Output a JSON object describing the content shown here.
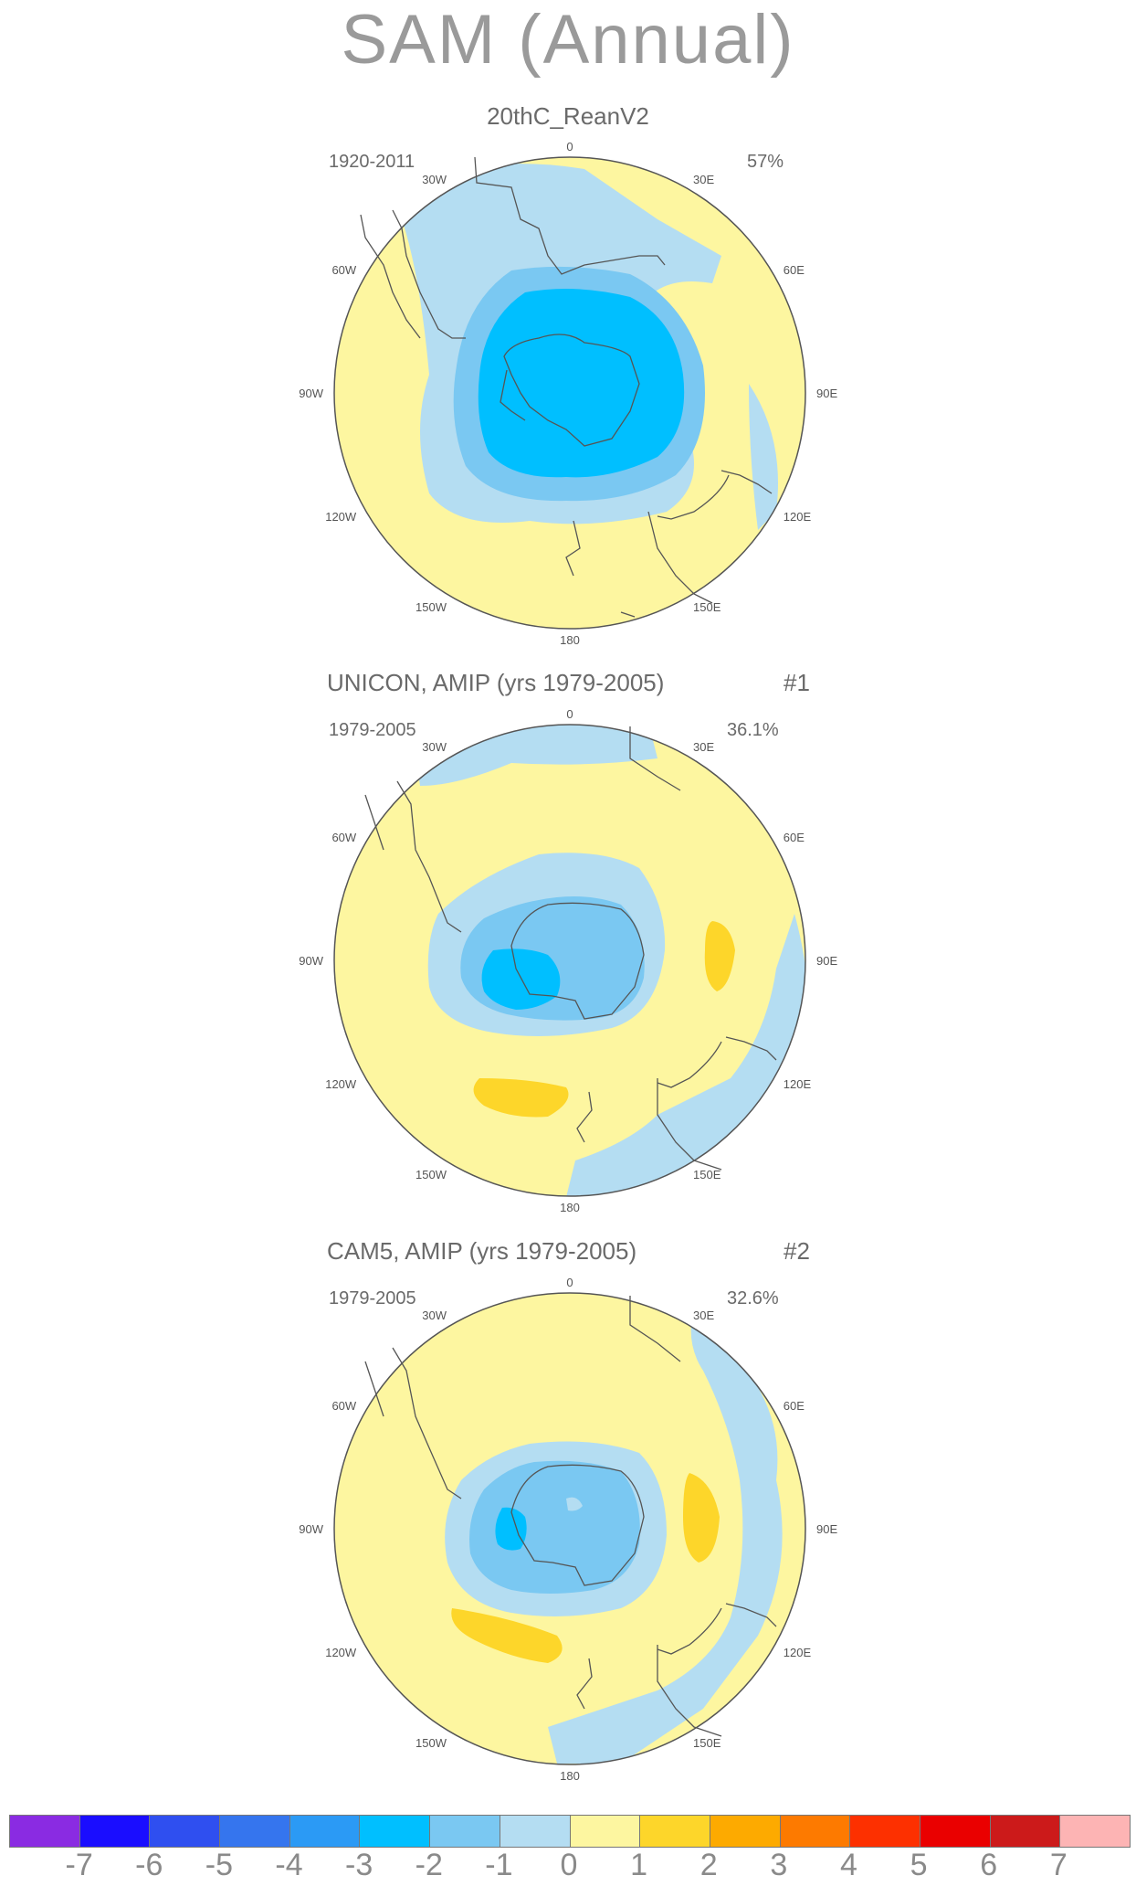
{
  "title": "SAM (Annual)",
  "panels": [
    {
      "title": "20thC_ReanV2",
      "number": "",
      "period": "1920-2011",
      "percent": "57%"
    },
    {
      "title": "UNICON, AMIP (yrs 1979-2005)",
      "number": "#1",
      "period": "1979-2005",
      "percent": "36.1%"
    },
    {
      "title": "CAM5, AMIP (yrs 1979-2005)",
      "number": "#2",
      "period": "1979-2005",
      "percent": "32.6%"
    }
  ],
  "longitude_labels": [
    "0",
    "30E",
    "60E",
    "90E",
    "120E",
    "150E",
    "180",
    "150W",
    "120W",
    "90W",
    "60W",
    "30W"
  ],
  "colorbar": {
    "labels": [
      "-7",
      "-6",
      "-5",
      "-4",
      "-3",
      "-2",
      "-1",
      "0",
      "1",
      "2",
      "3",
      "4",
      "5",
      "6",
      "7"
    ],
    "colors": [
      "#8a2be2",
      "#1a0dff",
      "#2f4ff0",
      "#3575ee",
      "#2b9af5",
      "#00bfff",
      "#7ac8f2",
      "#b4ddf2",
      "#fdf6a0",
      "#fdd62a",
      "#fdaa00",
      "#fd7a00",
      "#fd3000",
      "#ea0000",
      "#cc1a1a",
      "#fdb4b4"
    ]
  },
  "colors": {
    "ocean_background": "#fdf6a0",
    "coast": "#555555"
  }
}
